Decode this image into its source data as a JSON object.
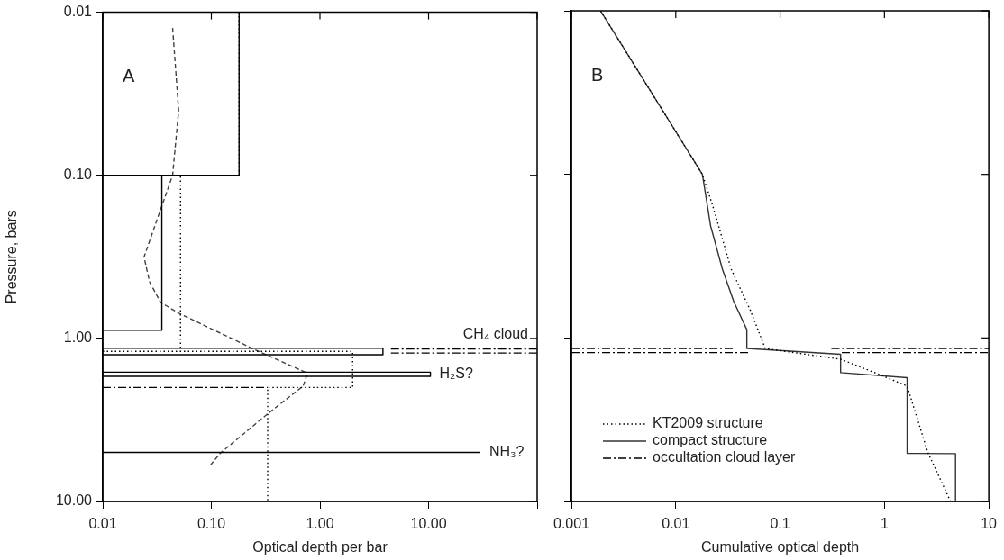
{
  "chart_data": [
    {
      "type": "line",
      "xlabel": "Optical depth per bar",
      "ylabel": "Pressure, bars",
      "log": "xy",
      "grid": false,
      "xlim": [
        0.01,
        100
      ],
      "xticks": [
        {
          "value": 0.01,
          "label": "0.01"
        },
        {
          "value": 0.1,
          "label": "0.10"
        },
        {
          "value": 1,
          "label": "1.00"
        },
        {
          "value": 10,
          "label": "10.00"
        },
        {
          "value": 100,
          "label": null
        }
      ],
      "ylim": [
        10,
        0.01
      ],
      "yticks": [
        {
          "value": 0.01,
          "label": "0.01"
        },
        {
          "value": 0.1,
          "label": "0.10"
        },
        {
          "value": 1,
          "label": "1.00"
        },
        {
          "value": 10,
          "label": "10.00"
        }
      ],
      "annotations": [
        "A",
        {
          "text": "CH₄ cloud",
          "x": 100,
          "y": 1.16
        },
        {
          "text": "H₂S?",
          "x": 10.4,
          "y": 1.66
        },
        {
          "text": "NH₃?",
          "x": 30,
          "y": 5
        }
      ],
      "series": [
        {
          "color": "#000000",
          "line_style": "solid",
          "x": [
            0.01,
            0.18,
            0.18
          ],
          "values": [
            0.1,
            0.1,
            0.01
          ]
        },
        {
          "color": "#000000",
          "line_style": "solid",
          "x": [
            0.01,
            0.035,
            0.035
          ],
          "values": [
            0.89,
            0.89,
            0.1
          ]
        },
        {
          "color": "#000000",
          "line_style": "solid",
          "x": [
            0.01,
            3.8,
            3.8,
            0.01
          ],
          "values": [
            1.15,
            1.15,
            1.26,
            1.26
          ]
        },
        {
          "color": "#000000",
          "line_style": "solid",
          "x": [
            0.01,
            10.4,
            10.4,
            0.01
          ],
          "values": [
            1.61,
            1.61,
            1.71,
            1.71
          ]
        },
        {
          "color": "#000000",
          "line_style": "solid",
          "x": [
            0.01,
            30
          ],
          "values": [
            5,
            5
          ]
        },
        {
          "color": "#000000",
          "line_style": "dotted",
          "x": [
            0.18,
            0.18,
            0.052,
            0.052
          ],
          "values": [
            0.01,
            0.1,
            0.1,
            1.15
          ]
        },
        {
          "color": "#000000",
          "line_style": "dotted",
          "x": [
            0.01,
            2,
            2,
            0.33,
            0.33
          ],
          "values": [
            1.2,
            1.2,
            2,
            2,
            10
          ]
        },
        {
          "color": "#000000",
          "line_style": "dashdot",
          "x": [
            4.5,
            100
          ],
          "values": [
            1.16,
            1.16
          ]
        },
        {
          "color": "#000000",
          "line_style": "dashdot",
          "x": [
            4.5,
            100
          ],
          "values": [
            1.23,
            1.23
          ]
        },
        {
          "color": "#000000",
          "line_style": "dashdot",
          "x": [
            0.01,
            0.33
          ],
          "values": [
            2,
            2
          ]
        },
        {
          "color": "#404040",
          "line_style": "dashed",
          "x": [
            0.044,
            0.05,
            0.044,
            0.035,
            0.024,
            0.027,
            0.034,
            0.05,
            0.25,
            0.73,
            0.76,
            0.7,
            0.33,
            0.12,
            0.096
          ],
          "values": [
            0.0125,
            0.04,
            0.1,
            0.154,
            0.317,
            0.45,
            0.6,
            0.7,
            1.17,
            1.61,
            1.67,
            1.96,
            2.9,
            5.08,
            6.1
          ]
        }
      ]
    },
    {
      "type": "line",
      "xlabel": "Cumulative optical depth",
      "log": "xy",
      "grid": false,
      "legend": "bottom left",
      "tick_labels": "x",
      "xlim": [
        0.001,
        10
      ],
      "xticks": [
        0.001,
        0.01,
        0.1,
        1,
        10
      ],
      "ylim": [
        10,
        0.01
      ],
      "yticks": [
        {
          "value": 0.01,
          "label": null
        },
        {
          "value": 0.1,
          "label": null
        },
        {
          "value": 1,
          "label": null
        },
        {
          "value": 10,
          "label": null
        }
      ],
      "annotations": [
        "B"
      ],
      "series": [
        {
          "name": "KT2009 structure",
          "color": "#000000",
          "line_style": "dotted",
          "x": [
            0.0019,
            0.018,
            0.0225,
            0.034,
            0.052,
            0.072,
            0.38,
            0.93,
            1.65,
            2.6,
            4.3
          ],
          "values": [
            0.01,
            0.1,
            0.154,
            0.38,
            0.68,
            1.16,
            1.35,
            1.69,
            1.97,
            4.99,
            10
          ]
        },
        {
          "name": "compact structure",
          "color": "#333333",
          "line_style": "solid",
          "x": [
            0.0019,
            0.018,
            0.0216,
            0.028,
            0.036,
            0.048,
            0.048,
            0.38,
            0.38,
            1.65,
            1.65,
            4.8,
            4.8
          ],
          "values": [
            0.01,
            0.1,
            0.207,
            0.38,
            0.6,
            0.89,
            1.16,
            1.26,
            1.63,
            1.75,
            5.08,
            5.1,
            10
          ]
        },
        {
          "name": "occultation cloud layer",
          "color": "#000000",
          "line_style": "dashdot",
          "x": [
            0.001,
            0.036,
            null,
            0.31,
            10,
            null,
            0.001,
            0.052,
            null,
            0.39,
            10
          ],
          "values": [
            1.16,
            1.16,
            null,
            1.16,
            1.16,
            null,
            1.23,
            1.23,
            null,
            1.23,
            1.23
          ]
        }
      ]
    }
  ]
}
